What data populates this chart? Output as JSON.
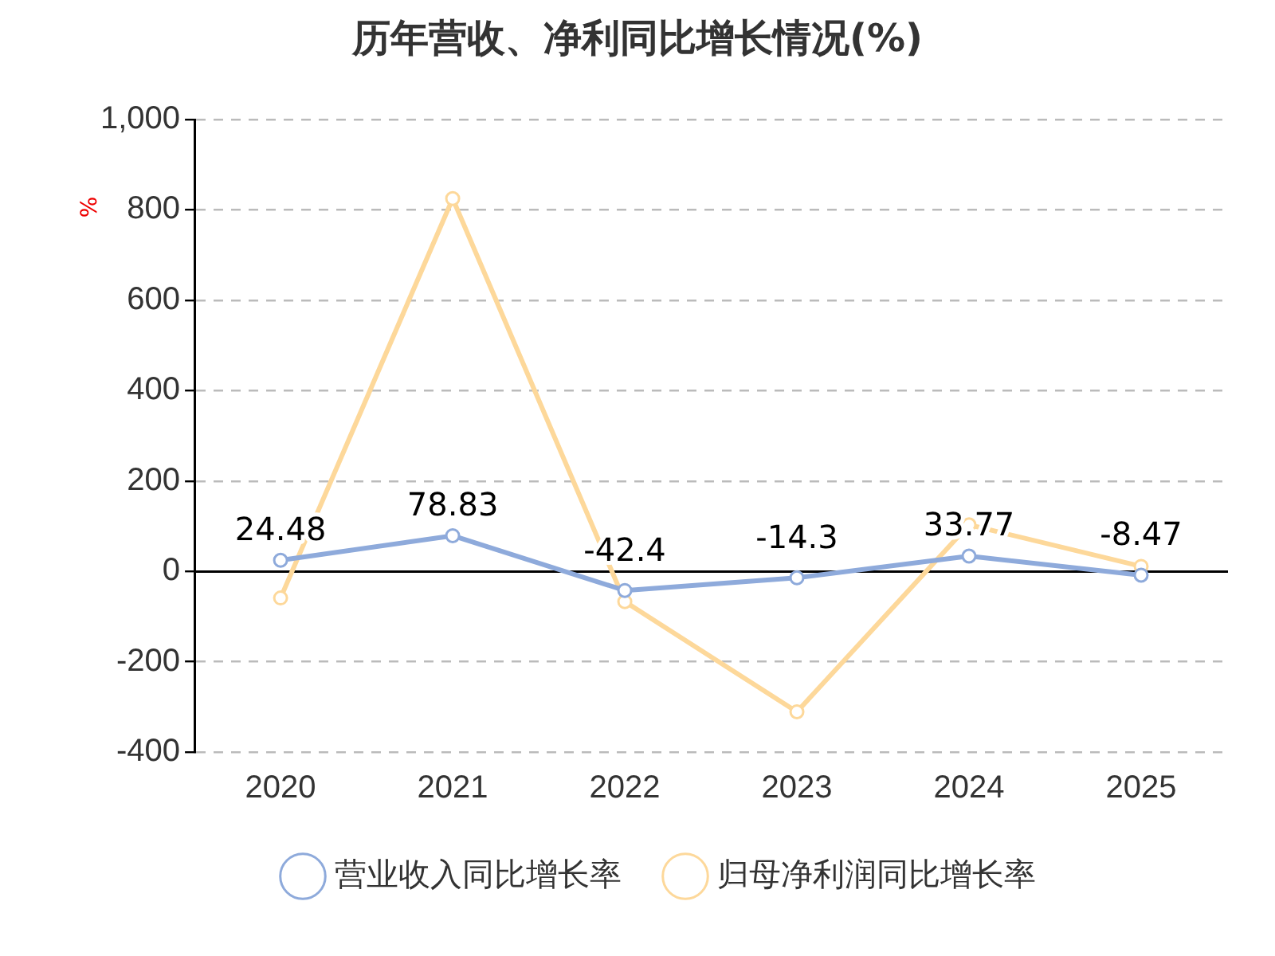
{
  "chart_data": {
    "type": "line",
    "title": "历年营收、净利同比增长情况(%)",
    "ylabel": "%",
    "categories": [
      "2020",
      "2021",
      "2022",
      "2023",
      "2024",
      "2025"
    ],
    "series": [
      {
        "name": "营业收入同比增长率",
        "color": "#8eaadb",
        "values": [
          24.48,
          78.83,
          -42.4,
          -14.3,
          33.77,
          -8.47
        ],
        "value_labels": [
          "24.48",
          "78.83",
          "-42.4",
          "-14.3",
          "33.77",
          "-8.47"
        ]
      },
      {
        "name": "归母净利润同比增长率",
        "color": "#fdd89a",
        "values": [
          -59,
          825,
          -67,
          -311,
          103,
          11
        ]
      }
    ],
    "ylim": [
      -400,
      1000
    ],
    "yticks": [
      -400,
      -200,
      0,
      200,
      400,
      600,
      800,
      {
        "value": 1000,
        "label": "1,000"
      }
    ],
    "grid": "y",
    "legend": "bottom",
    "marker": "circle",
    "line_style": "solid"
  }
}
